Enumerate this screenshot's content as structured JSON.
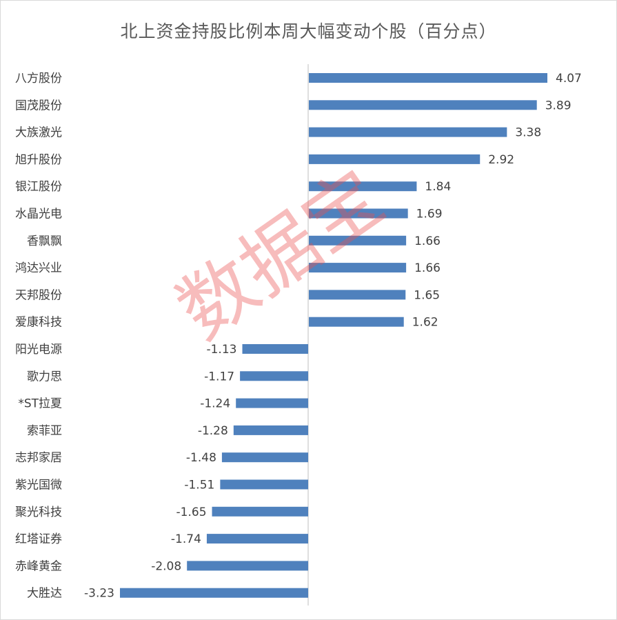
{
  "chart_data": {
    "type": "bar",
    "orientation": "horizontal",
    "title": "北上资金持股比例本周大幅变动个股（百分点）",
    "categories": [
      "八方股份",
      "国茂股份",
      "大族激光",
      "旭升股份",
      "银江股份",
      "水晶光电",
      "香飘飘",
      "鸿达兴业",
      "天邦股份",
      "爱康科技",
      "阳光电源",
      "歌力思",
      "*ST拉夏",
      "索菲亚",
      "志邦家居",
      "紫光国微",
      "聚光科技",
      "红塔证券",
      "赤峰黄金",
      "大胜达"
    ],
    "values": [
      4.07,
      3.89,
      3.38,
      2.92,
      1.84,
      1.69,
      1.66,
      1.66,
      1.65,
      1.62,
      -1.13,
      -1.17,
      -1.24,
      -1.28,
      -1.48,
      -1.51,
      -1.65,
      -1.74,
      -2.08,
      -3.23
    ],
    "value_labels": [
      "4.07",
      "3.89",
      "3.38",
      "2.92",
      "1.84",
      "1.69",
      "1.66",
      "1.66",
      "1.65",
      "1.62",
      "-1.13",
      "-1.17",
      "-1.24",
      "-1.28",
      "-1.48",
      "-1.51",
      "-1.65",
      "-1.74",
      "-2.08",
      "-3.23"
    ],
    "xlim": [
      -3.23,
      4.07
    ],
    "grid": false,
    "legend": "none",
    "bar_color": "#4f81bd",
    "axis_color": "#bfbfbf",
    "watermark": "数据宝"
  }
}
